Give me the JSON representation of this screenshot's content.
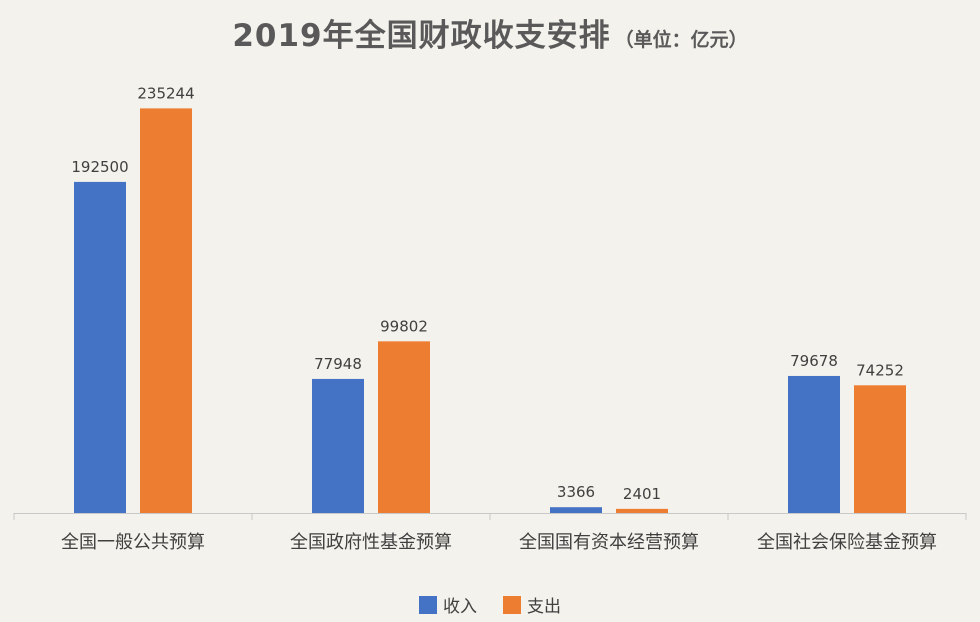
{
  "chart_data": {
    "type": "bar",
    "title": "2019年全国财政收支安排",
    "subtitle": "（单位：亿元）",
    "categories": [
      "全国一般公共预算",
      "全国政府性基金预算",
      "全国国有资本经营预算",
      "全国社会保险基金预算"
    ],
    "series": [
      {
        "name": "收入",
        "color": "#4472c4",
        "values": [
          192500,
          77948,
          3366,
          79678
        ]
      },
      {
        "name": "支出",
        "color": "#ed7d31",
        "values": [
          235244,
          99802,
          2401,
          74252
        ]
      }
    ],
    "ylim": [
      0,
      250000
    ],
    "grid": false,
    "legend_position": "bottom",
    "data_labels": true
  }
}
